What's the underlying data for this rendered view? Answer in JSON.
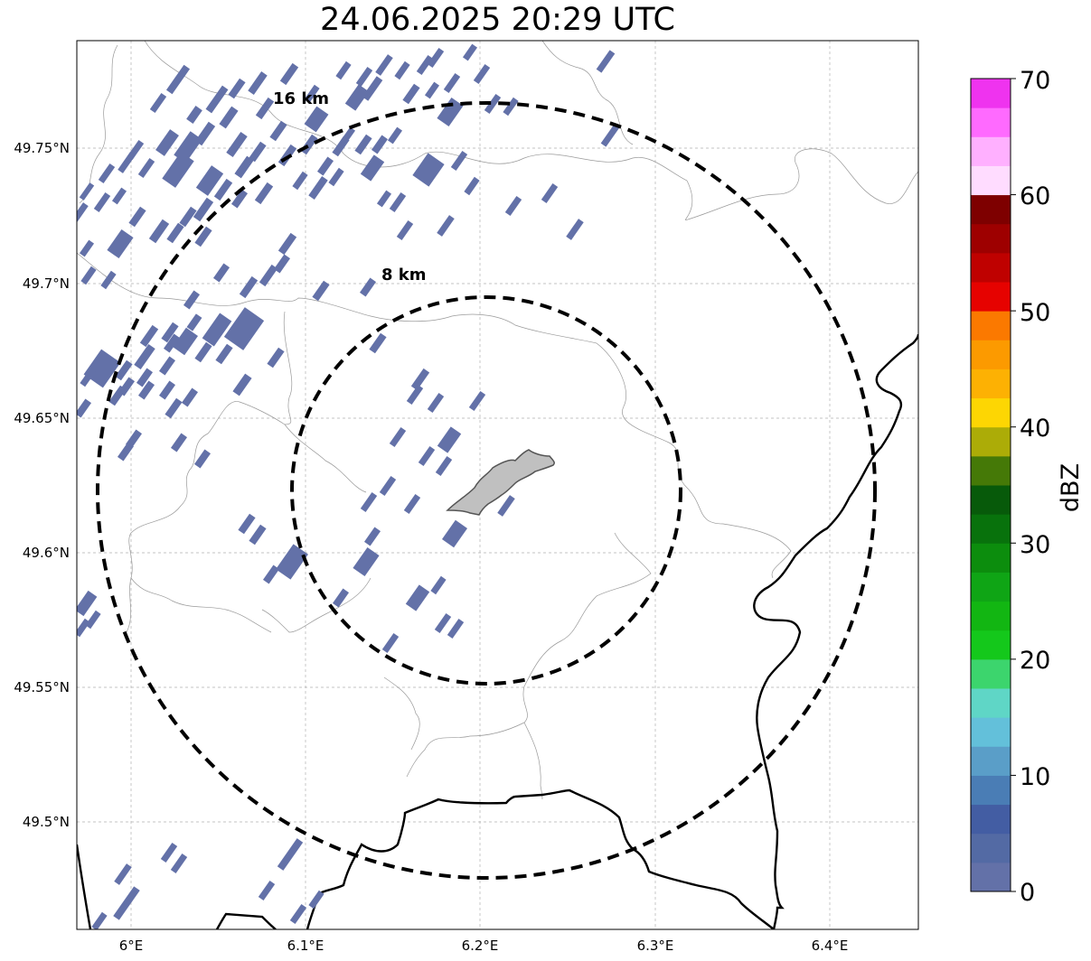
{
  "title": "24.06.2025 20:29 UTC",
  "map": {
    "x_ticks": [
      "6°E",
      "6.1°E",
      "6.2°E",
      "6.3°E",
      "6.4°E"
    ],
    "y_ticks": [
      "49.75°N",
      "49.7°N",
      "49.65°N",
      "49.6°N",
      "49.55°N",
      "49.5°N"
    ],
    "rings": [
      {
        "label": "8 km",
        "radius_km": 8
      },
      {
        "label": "16 km",
        "radius_km": 16
      }
    ],
    "radar_site": {
      "lon": 6.2,
      "lat": 49.623
    }
  },
  "colorbar": {
    "label": "dBZ",
    "ticks": [
      "0",
      "10",
      "20",
      "30",
      "40",
      "50",
      "60",
      "70"
    ],
    "min": 0,
    "max": 70,
    "step": 2.5,
    "colors": [
      "#6371a8",
      "#536aa4",
      "#435da3",
      "#4a7db5",
      "#5a9ec8",
      "#63c0da",
      "#5fd6c6",
      "#3cd56d",
      "#14c81b",
      "#12b612",
      "#0fa515",
      "#0c8d0d",
      "#08720c",
      "#075a0a",
      "#457907",
      "#acac07",
      "#fdd603",
      "#fdb103",
      "#fc9a00",
      "#fb7900",
      "#e60200",
      "#bf0100",
      "#9e0000",
      "#7e0000",
      "#ffdcff",
      "#ffb0ff",
      "#ff6aff",
      "#ef33ef"
    ]
  },
  "colors": {
    "echo": "#6371a8",
    "city_fill": "#c0c0c0",
    "border": "#000000",
    "admin": "#999999"
  }
}
